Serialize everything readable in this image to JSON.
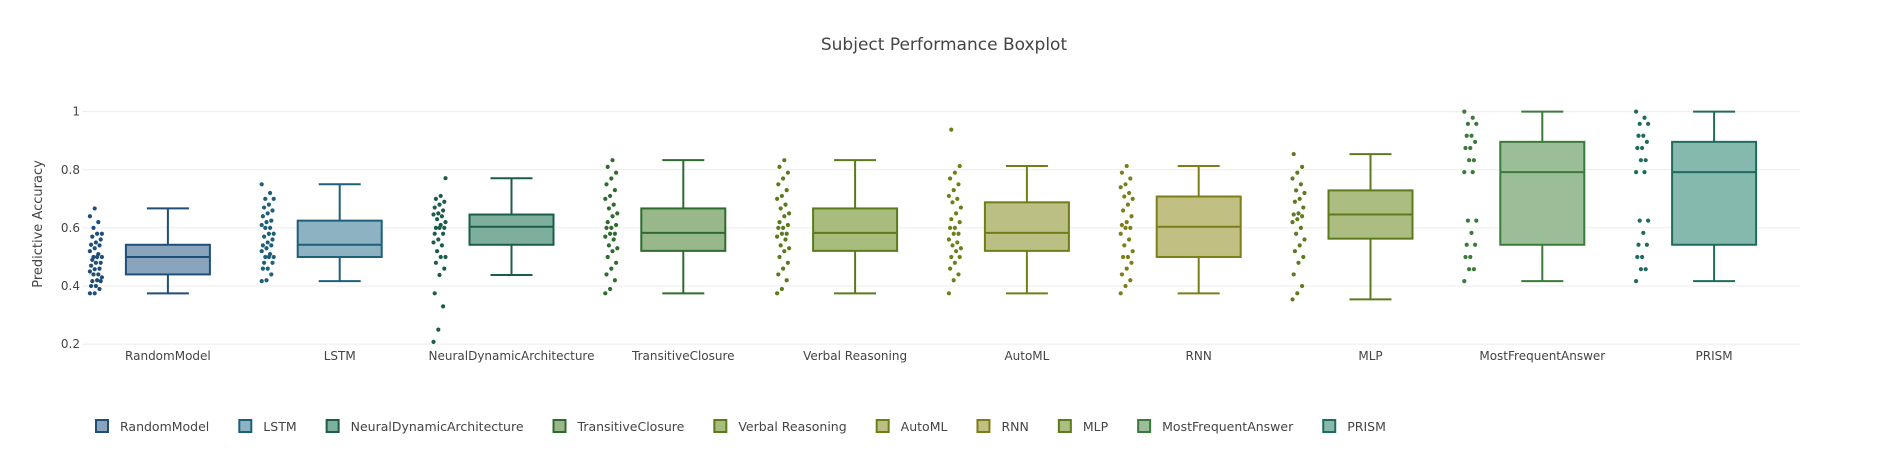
{
  "chart_data": {
    "type": "box",
    "title": "Subject Performance Boxplot",
    "xlabel": "",
    "ylabel": "Predictive Accuracy",
    "ylim": [
      0.18,
      1.04
    ],
    "yticks": [
      0.2,
      0.4,
      0.6,
      0.8,
      1
    ],
    "ytick_labels": [
      "0.2",
      "0.4",
      "0.6",
      "0.8",
      "1"
    ],
    "grid": true,
    "legend_position": "bottom-left",
    "series": [
      {
        "name": "RandomModel",
        "color": "#1f4e79",
        "fill": "#8aa4be",
        "min": 0.375,
        "q1": 0.44,
        "median": 0.5,
        "q3": 0.542,
        "max": 0.667,
        "points": [
          0.375,
          0.375,
          0.39,
          0.4,
          0.4,
          0.417,
          0.417,
          0.42,
          0.43,
          0.44,
          0.44,
          0.45,
          0.458,
          0.46,
          0.47,
          0.48,
          0.48,
          0.49,
          0.5,
          0.5,
          0.5,
          0.51,
          0.52,
          0.53,
          0.54,
          0.542,
          0.55,
          0.56,
          0.57,
          0.58,
          0.58,
          0.6,
          0.62,
          0.64,
          0.667
        ]
      },
      {
        "name": "LSTM",
        "color": "#1e5f7a",
        "fill": "#8db3c3",
        "min": 0.417,
        "q1": 0.5,
        "median": 0.542,
        "q3": 0.625,
        "max": 0.75,
        "points": [
          0.417,
          0.42,
          0.44,
          0.46,
          0.46,
          0.48,
          0.48,
          0.5,
          0.5,
          0.5,
          0.51,
          0.52,
          0.53,
          0.54,
          0.54,
          0.55,
          0.56,
          0.57,
          0.58,
          0.58,
          0.6,
          0.6,
          0.61,
          0.62,
          0.625,
          0.64,
          0.65,
          0.66,
          0.67,
          0.68,
          0.7,
          0.7,
          0.72,
          0.75
        ]
      },
      {
        "name": "NeuralDynamicArchitecture",
        "color": "#1d5c4d",
        "fill": "#7eaf9c",
        "min": 0.438,
        "q1": 0.542,
        "median": 0.604,
        "q3": 0.646,
        "max": 0.771,
        "points": [
          0.208,
          0.25,
          0.33,
          0.375,
          0.438,
          0.46,
          0.48,
          0.5,
          0.5,
          0.52,
          0.54,
          0.55,
          0.56,
          0.58,
          0.58,
          0.6,
          0.6,
          0.6,
          0.61,
          0.62,
          0.63,
          0.64,
          0.646,
          0.65,
          0.66,
          0.67,
          0.68,
          0.69,
          0.7,
          0.71,
          0.771
        ]
      },
      {
        "name": "TransitiveClosure",
        "color": "#2f6b2f",
        "fill": "#98b88c",
        "min": 0.375,
        "q1": 0.521,
        "median": 0.583,
        "q3": 0.667,
        "max": 0.833,
        "points": [
          0.375,
          0.39,
          0.42,
          0.44,
          0.46,
          0.48,
          0.5,
          0.52,
          0.53,
          0.54,
          0.56,
          0.57,
          0.58,
          0.58,
          0.6,
          0.6,
          0.61,
          0.62,
          0.64,
          0.65,
          0.667,
          0.68,
          0.7,
          0.71,
          0.73,
          0.75,
          0.77,
          0.79,
          0.81,
          0.833
        ]
      },
      {
        "name": "Verbal Reasoning",
        "color": "#5a7a1c",
        "fill": "#a7bc7d",
        "min": 0.375,
        "q1": 0.521,
        "median": 0.583,
        "q3": 0.667,
        "max": 0.833,
        "points": [
          0.375,
          0.39,
          0.42,
          0.44,
          0.46,
          0.48,
          0.5,
          0.52,
          0.53,
          0.54,
          0.56,
          0.57,
          0.58,
          0.58,
          0.6,
          0.6,
          0.61,
          0.62,
          0.64,
          0.65,
          0.667,
          0.68,
          0.7,
          0.71,
          0.73,
          0.75,
          0.77,
          0.79,
          0.81,
          0.833
        ]
      },
      {
        "name": "AutoML",
        "color": "#6f7f18",
        "fill": "#bcbf84",
        "min": 0.375,
        "q1": 0.521,
        "median": 0.583,
        "q3": 0.688,
        "max": 0.813,
        "points": [
          0.375,
          0.42,
          0.44,
          0.46,
          0.48,
          0.5,
          0.5,
          0.52,
          0.53,
          0.54,
          0.55,
          0.56,
          0.58,
          0.58,
          0.6,
          0.6,
          0.62,
          0.63,
          0.65,
          0.67,
          0.688,
          0.7,
          0.71,
          0.73,
          0.75,
          0.77,
          0.79,
          0.813,
          0.938
        ]
      },
      {
        "name": "RNN",
        "color": "#7c7e1a",
        "fill": "#c1bf82",
        "min": 0.375,
        "q1": 0.5,
        "median": 0.604,
        "q3": 0.708,
        "max": 0.813,
        "points": [
          0.375,
          0.4,
          0.42,
          0.44,
          0.46,
          0.48,
          0.5,
          0.5,
          0.52,
          0.54,
          0.56,
          0.58,
          0.6,
          0.6,
          0.61,
          0.62,
          0.64,
          0.66,
          0.68,
          0.7,
          0.708,
          0.72,
          0.74,
          0.75,
          0.77,
          0.79,
          0.813
        ]
      },
      {
        "name": "MLP",
        "color": "#5d7a1f",
        "fill": "#abbd80",
        "min": 0.354,
        "q1": 0.563,
        "median": 0.646,
        "q3": 0.729,
        "max": 0.854,
        "points": [
          0.354,
          0.375,
          0.4,
          0.44,
          0.48,
          0.5,
          0.52,
          0.54,
          0.56,
          0.58,
          0.6,
          0.62,
          0.63,
          0.64,
          0.646,
          0.65,
          0.67,
          0.69,
          0.7,
          0.72,
          0.729,
          0.75,
          0.77,
          0.79,
          0.81,
          0.854
        ]
      },
      {
        "name": "MostFrequentAnswer",
        "color": "#3a7a3a",
        "fill": "#9bbd97",
        "min": 0.417,
        "q1": 0.542,
        "median": 0.792,
        "q3": 0.896,
        "max": 1.0,
        "points": [
          0.417,
          0.458,
          0.458,
          0.5,
          0.5,
          0.542,
          0.542,
          0.583,
          0.625,
          0.625,
          0.792,
          0.792,
          0.833,
          0.833,
          0.875,
          0.875,
          0.896,
          0.917,
          0.917,
          0.958,
          0.958,
          0.979,
          1.0
        ]
      },
      {
        "name": "PRISM",
        "color": "#1f6b5e",
        "fill": "#86b9ad",
        "min": 0.417,
        "q1": 0.542,
        "median": 0.792,
        "q3": 0.896,
        "max": 1.0,
        "points": [
          0.417,
          0.458,
          0.458,
          0.5,
          0.5,
          0.542,
          0.542,
          0.583,
          0.625,
          0.625,
          0.792,
          0.792,
          0.833,
          0.833,
          0.875,
          0.875,
          0.896,
          0.917,
          0.917,
          0.958,
          0.958,
          0.979,
          1.0
        ]
      }
    ]
  }
}
